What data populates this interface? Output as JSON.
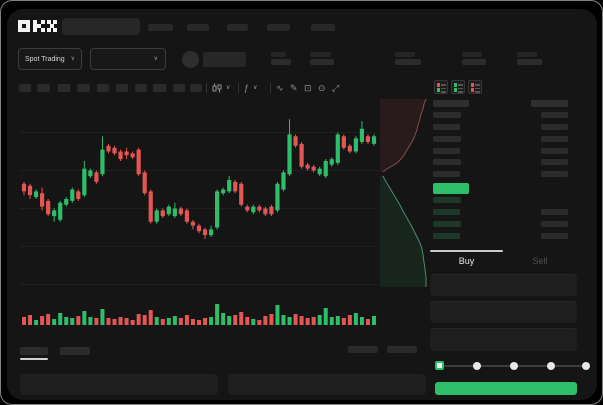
{
  "brand": {
    "logo": "OKX"
  },
  "colors": {
    "up": "#2ebd69",
    "down": "#e25654",
    "app_bg": "#151515",
    "accent": "#2ebd69"
  },
  "header": {
    "search": {
      "placeholder": ""
    },
    "nav_items": [
      [
        148,
        25
      ],
      [
        187,
        22
      ],
      [
        227,
        21
      ],
      [
        267,
        23
      ],
      [
        311,
        24
      ]
    ],
    "market_selector": {
      "label": "Spot Trading",
      "chevron": "∨"
    },
    "pair_selector": {
      "chevron": "∨"
    },
    "stats": [
      [
        271,
        15,
        20
      ],
      [
        310,
        21,
        24
      ],
      [
        395,
        20,
        26
      ],
      [
        462,
        20,
        24
      ],
      [
        517,
        20,
        25
      ]
    ]
  },
  "toolbar": {
    "timeframe_slots": [
      [
        19,
        12
      ],
      [
        37,
        13
      ],
      [
        58,
        12
      ],
      [
        77,
        13
      ],
      [
        97,
        12
      ],
      [
        116,
        12
      ],
      [
        135,
        12
      ],
      [
        153,
        13
      ],
      [
        173,
        12
      ],
      [
        190,
        12
      ]
    ],
    "tools": [
      {
        "divider": true
      },
      {
        "name": "chart-type-icon",
        "glyph": "candle",
        "chevron": "∨"
      },
      {
        "divider": true
      },
      {
        "name": "indicators-icon",
        "glyph": "ƒ",
        "chevron": "∨"
      },
      {
        "divider": true
      },
      {
        "name": "line-tool-icon",
        "glyph": "∿"
      },
      {
        "name": "draw-icon",
        "glyph": "✎"
      },
      {
        "name": "screenshot-icon",
        "glyph": "⊡"
      },
      {
        "name": "settings-icon",
        "glyph": "⊙"
      },
      {
        "name": "fullscreen-icon",
        "glyph": "⤢"
      }
    ]
  },
  "chart_data": {
    "type": "candlestick",
    "title": "",
    "price_scale": {
      "ylim": [
        0,
        104
      ],
      "gridline_prices": [
        85,
        65,
        45,
        25,
        5
      ]
    },
    "candles": [
      [
        58,
        59,
        52,
        54
      ],
      [
        57,
        58,
        50,
        52
      ],
      [
        51,
        55,
        50,
        54
      ],
      [
        53,
        56,
        44,
        46
      ],
      [
        49,
        50,
        41,
        42
      ],
      [
        41,
        45,
        38,
        44
      ],
      [
        39,
        49,
        38,
        48
      ],
      [
        47,
        51,
        46,
        50
      ],
      [
        49,
        56,
        48,
        55
      ],
      [
        54,
        55,
        49,
        50
      ],
      [
        52,
        70,
        51,
        66
      ],
      [
        62,
        66,
        61,
        65
      ],
      [
        64,
        65,
        58,
        59
      ],
      [
        63,
        83,
        62,
        76
      ],
      [
        78,
        79,
        74,
        75
      ],
      [
        77,
        78,
        73,
        74
      ],
      [
        75,
        76,
        70,
        71
      ],
      [
        75,
        77,
        71,
        73
      ],
      [
        74,
        75,
        71,
        72
      ],
      [
        76,
        77,
        62,
        63
      ],
      [
        64,
        65,
        52,
        53
      ],
      [
        54,
        55,
        37,
        38
      ],
      [
        38,
        45,
        37,
        44
      ],
      [
        44,
        45,
        40,
        41
      ],
      [
        42,
        47,
        41,
        46
      ],
      [
        41,
        48,
        40,
        45
      ],
      [
        45,
        46,
        41,
        42
      ],
      [
        44,
        45,
        37,
        38
      ],
      [
        38,
        39,
        34,
        36
      ],
      [
        36,
        37,
        32,
        33
      ],
      [
        34,
        35,
        29,
        31
      ],
      [
        31,
        36,
        30,
        34
      ],
      [
        35,
        55,
        34,
        54
      ],
      [
        53,
        56,
        52,
        55
      ],
      [
        54,
        62,
        53,
        60
      ],
      [
        59,
        60,
        53,
        54
      ],
      [
        58,
        59,
        46,
        47
      ],
      [
        46,
        47,
        43,
        44
      ],
      [
        43,
        47,
        42,
        46
      ],
      [
        46,
        47,
        43,
        44
      ],
      [
        45,
        46,
        41,
        42
      ],
      [
        46,
        47,
        41,
        42
      ],
      [
        44,
        59,
        43,
        58
      ],
      [
        55,
        65,
        54,
        64
      ],
      [
        63,
        92,
        62,
        84
      ],
      [
        83,
        84,
        77,
        78
      ],
      [
        79,
        80,
        66,
        67
      ],
      [
        68,
        69,
        65,
        66
      ],
      [
        67,
        68,
        64,
        65
      ],
      [
        63,
        67,
        62,
        66
      ],
      [
        62,
        71,
        61,
        70
      ],
      [
        68,
        72,
        67,
        71
      ],
      [
        69,
        85,
        68,
        84
      ],
      [
        83,
        84,
        76,
        77
      ],
      [
        78,
        79,
        74,
        75
      ],
      [
        75,
        83,
        74,
        82
      ],
      [
        80,
        91,
        79,
        87
      ],
      [
        83,
        84,
        79,
        80
      ],
      [
        79,
        84,
        78,
        83
      ]
    ],
    "volume": [
      8,
      10,
      5,
      9,
      11,
      6,
      12,
      8,
      7,
      9,
      14,
      8,
      7,
      16,
      7,
      6,
      8,
      7,
      5,
      11,
      10,
      15,
      8,
      6,
      7,
      9,
      7,
      10,
      6,
      5,
      7,
      8,
      21,
      12,
      9,
      10,
      13,
      8,
      6,
      5,
      9,
      11,
      20,
      10,
      8,
      11,
      9,
      7,
      8,
      10,
      17,
      8,
      9,
      7,
      10,
      12,
      8,
      6,
      9
    ],
    "up_color": "#2ebd69",
    "down_color": "#e25654"
  },
  "depth": {
    "asks": [
      [
        46,
        2
      ],
      [
        44,
        7
      ],
      [
        43,
        12
      ],
      [
        41,
        17
      ],
      [
        40,
        22
      ],
      [
        38,
        28
      ],
      [
        37,
        33
      ],
      [
        35,
        38
      ],
      [
        33,
        43
      ],
      [
        30,
        48
      ],
      [
        27,
        53
      ],
      [
        24,
        58
      ],
      [
        21,
        62
      ],
      [
        17,
        66
      ],
      [
        12,
        69
      ],
      [
        7,
        72
      ],
      [
        3,
        75
      ]
    ],
    "bids": [
      [
        3,
        79
      ],
      [
        5,
        83
      ],
      [
        8,
        88
      ],
      [
        11,
        93
      ],
      [
        14,
        98
      ],
      [
        17,
        103
      ],
      [
        20,
        108
      ],
      [
        23,
        114
      ],
      [
        27,
        121
      ],
      [
        31,
        128
      ],
      [
        34,
        134
      ],
      [
        37,
        140
      ],
      [
        40,
        146
      ],
      [
        42,
        152
      ],
      [
        43,
        158
      ],
      [
        44,
        165
      ],
      [
        45,
        172
      ],
      [
        46,
        180
      ],
      [
        46,
        190
      ]
    ],
    "ask_fill": "rgba(224,86,84,0.10)",
    "ask_line": "rgba(230,120,118,0.55)",
    "bid_fill": "rgba(46,189,105,0.10)",
    "bid_line": "rgba(110,212,175,0.60)"
  },
  "orderbook": {
    "view_toggles": [
      {
        "name": "orderbook-combined-view-icon",
        "top": "#e25654",
        "bottom": "#2ebd69"
      },
      {
        "name": "orderbook-bids-view-icon",
        "top": "#2ebd69",
        "bottom": "#2ebd69"
      },
      {
        "name": "orderbook-asks-view-icon",
        "top": "#e25654",
        "bottom": "#e25654"
      }
    ],
    "header": {
      "price_w": 36,
      "amount_w": 37
    },
    "asks": [
      [
        112,
        28,
        27
      ],
      [
        124,
        27,
        27
      ],
      [
        136,
        28,
        27
      ],
      [
        148,
        27,
        27
      ],
      [
        159,
        28,
        27
      ],
      [
        171,
        27,
        27
      ]
    ],
    "last_price": {
      "y": 183,
      "w": 36,
      "h": 11,
      "color": "#2ebd69"
    },
    "bids": [
      [
        197,
        28,
        0
      ],
      [
        209,
        27,
        27
      ],
      [
        221,
        28,
        27
      ],
      [
        233,
        27,
        27
      ]
    ],
    "bid_bar_color": "#1d3829",
    "ask_bar_color": "#2c2c2c",
    "amount_bar_color": "#2b2b2b"
  },
  "trade_panel": {
    "tabs": [
      {
        "label": "Buy",
        "active": true
      },
      {
        "label": "Sell",
        "active": false
      }
    ],
    "inputs": [
      [
        274,
        22
      ],
      [
        301,
        22
      ],
      [
        328,
        23
      ]
    ],
    "slider": {
      "positions": [
        440,
        477,
        514,
        551,
        586
      ],
      "value_index": 0
    },
    "submit": {
      "label": "",
      "color": "#2ebd69"
    }
  },
  "bottom": {
    "tabs": [
      [
        20,
        28
      ],
      [
        60,
        30
      ]
    ],
    "active_tab_index": 0,
    "right_chips": [
      [
        348,
        30
      ],
      [
        387,
        30
      ]
    ],
    "panels": [
      [
        20,
        198
      ],
      [
        228,
        198
      ]
    ]
  }
}
